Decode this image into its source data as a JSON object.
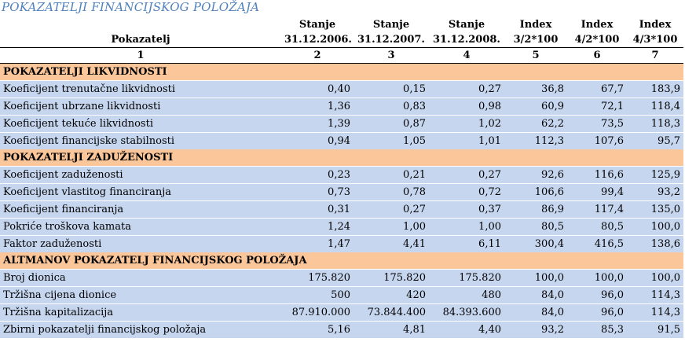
{
  "title": "POKAZATELJI FINANCIJSKOG POLOŽAJA",
  "header": {
    "col1_line2": "Pokazatelj",
    "cols": [
      {
        "line1": "Stanje",
        "line2": "31.12.2006."
      },
      {
        "line1": "Stanje",
        "line2": "31.12.2007."
      },
      {
        "line1": "Stanje",
        "line2": "31.12.2008."
      },
      {
        "line1": "Index",
        "line2": "3/2*100"
      },
      {
        "line1": "Index",
        "line2": "4/2*100"
      },
      {
        "line1": "Index",
        "line2": "4/3*100"
      }
    ],
    "numbers": [
      "1",
      "2",
      "3",
      "4",
      "5",
      "6",
      "7"
    ]
  },
  "sections": [
    {
      "title": "POKAZATELJI LIKVIDNOSTI",
      "rows": [
        {
          "label": "Koeficijent trenutačne likvidnosti",
          "values": [
            "0,40",
            "0,15",
            "0,27",
            "36,8",
            "67,7",
            "183,9"
          ]
        },
        {
          "label": "Koeficijent ubrzane likvidnosti",
          "values": [
            "1,36",
            "0,83",
            "0,98",
            "60,9",
            "72,1",
            "118,4"
          ]
        },
        {
          "label": "Koeficijent tekuće likvidnosti",
          "values": [
            "1,39",
            "0,87",
            "1,02",
            "62,2",
            "73,5",
            "118,3"
          ]
        },
        {
          "label": "Koeficijent financijske stabilnosti",
          "values": [
            "0,94",
            "1,05",
            "1,01",
            "112,3",
            "107,6",
            "95,7"
          ]
        }
      ]
    },
    {
      "title": "POKAZATELJI ZADUŽENOSTI",
      "rows": [
        {
          "label": "Koeficijent zaduženosti",
          "values": [
            "0,23",
            "0,21",
            "0,27",
            "92,6",
            "116,6",
            "125,9"
          ]
        },
        {
          "label": "Koeficijent vlastitog financiranja",
          "values": [
            "0,73",
            "0,78",
            "0,72",
            "106,6",
            "99,4",
            "93,2"
          ]
        },
        {
          "label": "Koeficijent financiranja",
          "values": [
            "0,31",
            "0,27",
            "0,37",
            "86,9",
            "117,4",
            "135,0"
          ]
        },
        {
          "label": "Pokriće troškova kamata",
          "values": [
            "1,24",
            "1,00",
            "1,00",
            "80,5",
            "80,5",
            "100,0"
          ]
        },
        {
          "label": "Faktor zaduženosti",
          "values": [
            "1,47",
            "4,41",
            "6,11",
            "300,4",
            "416,5",
            "138,6"
          ]
        }
      ]
    },
    {
      "title": "ALTMANOV POKAZATELJ FINANCIJSKOG POLOŽAJA",
      "rows": [
        {
          "label": "Broj dionica",
          "values": [
            "175.820",
            "175.820",
            "175.820",
            "100,0",
            "100,0",
            "100,0"
          ]
        },
        {
          "label": "Tržišna cijena dionice",
          "values": [
            "500",
            "420",
            "480",
            "84,0",
            "96,0",
            "114,3"
          ]
        },
        {
          "label": "Tržišna kapitalizacija",
          "values": [
            "87.910.000",
            "73.844.400",
            "84.393.600",
            "84,0",
            "96,0",
            "114,3"
          ]
        },
        {
          "label": "Zbirni pokazatelji financijskog položaja",
          "values": [
            "5,16",
            "4,81",
            "4,40",
            "93,2",
            "85,3",
            "91,5"
          ]
        }
      ]
    }
  ]
}
